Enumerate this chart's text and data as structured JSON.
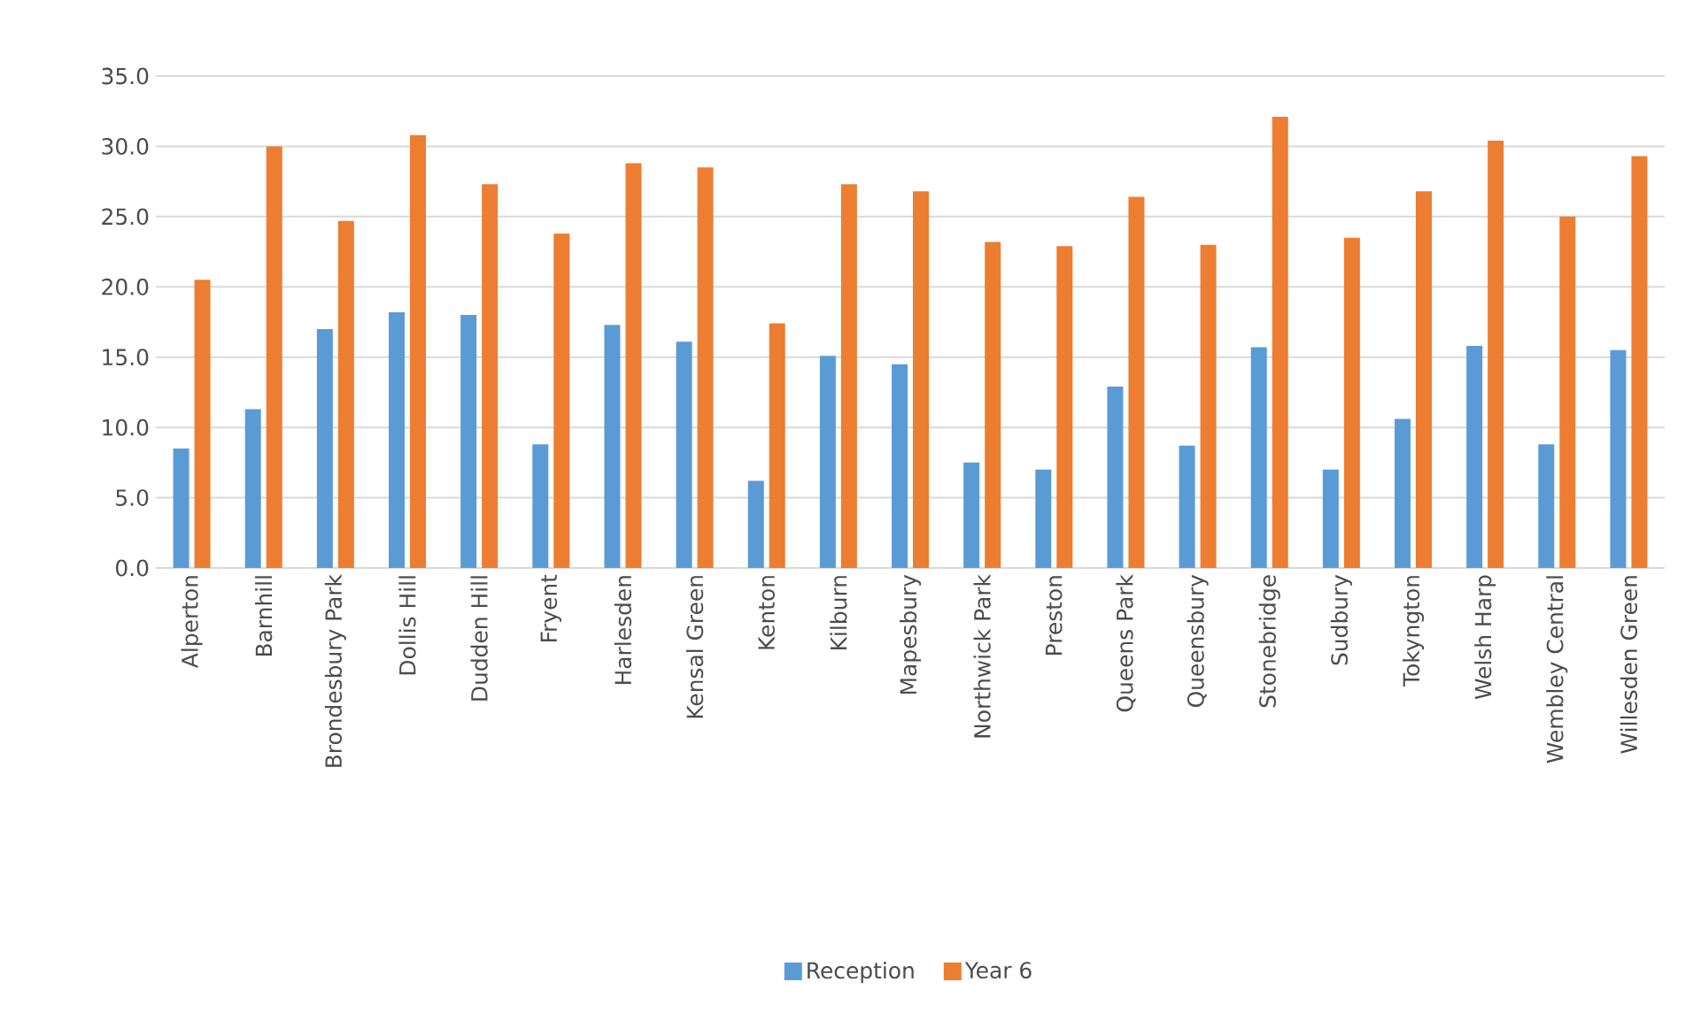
{
  "chart_data": {
    "type": "bar",
    "categories": [
      "Alperton",
      "Barnhill",
      "Brondesbury Park",
      "Dollis Hill",
      "Dudden Hill",
      "Fryent",
      "Harlesden",
      "Kensal Green",
      "Kenton",
      "Kilburn",
      "Mapesbury",
      "Northwick Park",
      "Preston",
      "Queens Park",
      "Queensbury",
      "Stonebridge",
      "Sudbury",
      "Tokyngton",
      "Welsh Harp",
      "Wembley Central",
      "Willesden Green"
    ],
    "series": [
      {
        "name": "Reception",
        "color": "#5b9bd5",
        "values": [
          8.5,
          11.3,
          17.0,
          18.2,
          18.0,
          8.8,
          17.3,
          16.1,
          6.2,
          15.1,
          14.5,
          7.5,
          7.0,
          12.9,
          8.7,
          15.7,
          7.0,
          10.6,
          15.8,
          8.8,
          15.5
        ]
      },
      {
        "name": "Year 6",
        "color": "#ed7d31",
        "values": [
          20.5,
          30.0,
          24.7,
          30.8,
          27.3,
          23.8,
          28.8,
          28.5,
          17.4,
          27.3,
          26.8,
          23.2,
          22.9,
          26.4,
          23.0,
          32.1,
          23.5,
          26.8,
          30.4,
          25.0,
          29.3
        ]
      }
    ],
    "ylim": [
      0,
      35
    ],
    "yticks": [
      {
        "value": 0,
        "label": "0.0"
      },
      {
        "value": 5,
        "label": "5.0"
      },
      {
        "value": 10,
        "label": "10.0"
      },
      {
        "value": 15,
        "label": "15.0"
      },
      {
        "value": 20,
        "label": "20.0"
      },
      {
        "value": 25,
        "label": "25.0"
      },
      {
        "value": 30,
        "label": "30.0"
      },
      {
        "value": 35,
        "label": "35.0"
      }
    ],
    "grid": "y",
    "legend": "bottom"
  }
}
